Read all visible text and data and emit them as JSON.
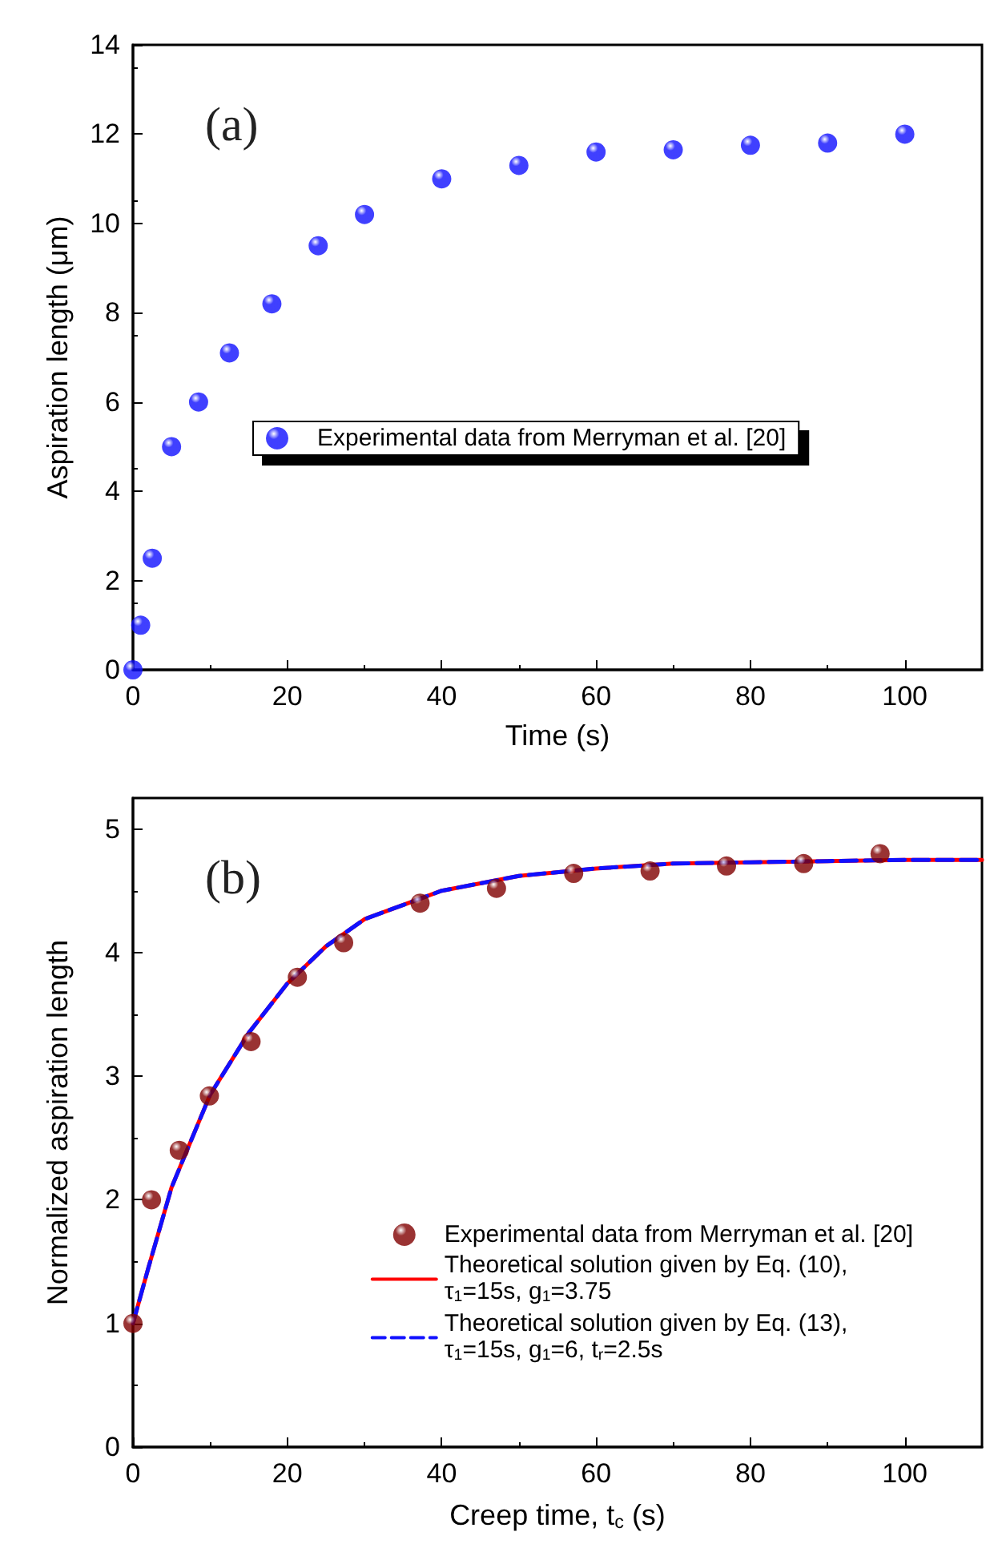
{
  "chart_data": [
    {
      "type": "scatter",
      "xlabel": "Time (s)",
      "ylabel": "Aspiration length (μm)",
      "annotations": [
        "(a)"
      ],
      "xlim": [
        0,
        110
      ],
      "xticks": [
        0,
        20,
        40,
        60,
        80,
        100
      ],
      "ylim": [
        0,
        14
      ],
      "yticks": [
        0,
        2,
        4,
        6,
        8,
        10,
        12,
        14
      ],
      "grid": false,
      "legend": "left",
      "marker": "circle",
      "series": [
        {
          "name": "Experimental data from Merryman et al. [20]",
          "color": "#1010ff",
          "x": [
            0,
            1,
            2.5,
            5,
            8.5,
            12.5,
            18,
            24,
            30,
            40,
            50,
            60,
            70,
            80,
            90,
            100
          ],
          "values": [
            0,
            1,
            2.5,
            5,
            6,
            7.1,
            8.2,
            9.5,
            10.2,
            11,
            11.3,
            11.6,
            11.65,
            11.75,
            11.8,
            12
          ]
        }
      ]
    },
    {
      "type": "scatter",
      "xlabel": "Creep time, t$_{c}$ (s)",
      "ylabel": "Normalized aspiration length",
      "annotations": [
        "(b)"
      ],
      "xlim": [
        0,
        110
      ],
      "xticks": [
        0,
        20,
        40,
        60,
        80,
        100
      ],
      "ylim": [
        0,
        5.25
      ],
      "yticks": [
        0,
        1,
        2,
        3,
        4,
        5
      ],
      "grid": false,
      "legend": "right",
      "series": [
        {
          "name": "Experimental data from Merryman et al. [20]",
          "marker": "circle",
          "color": "#800000",
          "x": [
            0,
            2.4,
            6,
            9.9,
            15.3,
            21.3,
            27.3,
            37.2,
            47.1,
            57.1,
            67,
            76.9,
            86.9,
            96.8
          ],
          "values": [
            1.0,
            2.0,
            2.4,
            2.84,
            3.28,
            3.8,
            4.08,
            4.4,
            4.52,
            4.64,
            4.66,
            4.7,
            4.72,
            4.8
          ]
        },
        {
          "type": "line",
          "marker": "none",
          "line_style": "solid",
          "name": "Theoretical solution given by Eq. (10),\nτ$_{1}$=15s, g$_{1}$=3.75",
          "color": "#ff0000",
          "x": [
            0,
            2,
            5,
            10,
            15,
            20,
            25,
            30,
            40,
            50,
            60,
            70,
            80,
            90,
            100,
            110
          ],
          "values": [
            1.0,
            1.45,
            2.1,
            2.85,
            3.35,
            3.75,
            4.05,
            4.27,
            4.5,
            4.62,
            4.68,
            4.72,
            4.73,
            4.74,
            4.75,
            4.75
          ]
        },
        {
          "type": "line",
          "marker": "none",
          "line_style": "dashed",
          "name": "Theoretical solution given by Eq. (13),\nτ$_{1}$=15s, g$_{1}$=6, t$_{r}$=2.5s",
          "color": "#1010ff",
          "x": [
            0,
            2,
            5,
            10,
            15,
            20,
            25,
            30,
            40,
            50,
            60,
            70,
            80,
            90,
            100,
            110
          ],
          "values": [
            1.0,
            1.45,
            2.1,
            2.85,
            3.35,
            3.75,
            4.05,
            4.27,
            4.5,
            4.62,
            4.68,
            4.72,
            4.73,
            4.74,
            4.75,
            4.75
          ]
        }
      ]
    }
  ]
}
